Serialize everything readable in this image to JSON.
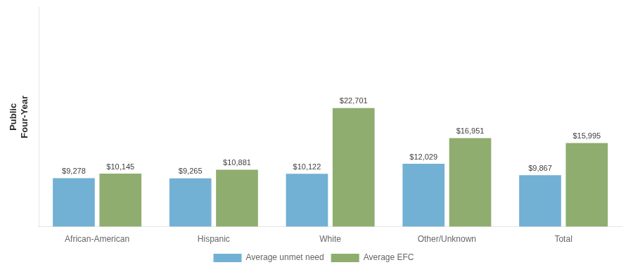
{
  "chart_data": {
    "type": "bar",
    "categories": [
      "African-American",
      "Hispanic",
      "White",
      "Other/Unknown",
      "Total"
    ],
    "series": [
      {
        "name": "Average unmet need",
        "color": "#72b0d4",
        "values": [
          9278,
          9265,
          10122,
          12029,
          9867
        ],
        "value_labels": [
          "$9,278",
          "$9,265",
          "$10,122",
          "$12,029",
          "$9,867"
        ]
      },
      {
        "name": "Average EFC",
        "color": "#8fad6e",
        "values": [
          10145,
          10881,
          22701,
          16951,
          15995
        ],
        "value_labels": [
          "$10,145",
          "$10,881",
          "$22,701",
          "$16,951",
          "$15,995"
        ]
      }
    ],
    "ylabel": "Public\nFour-Year",
    "ylim": [
      0,
      42000
    ],
    "tick_labels": "x",
    "grid": false,
    "legend": "bottom",
    "data_labels": true
  }
}
